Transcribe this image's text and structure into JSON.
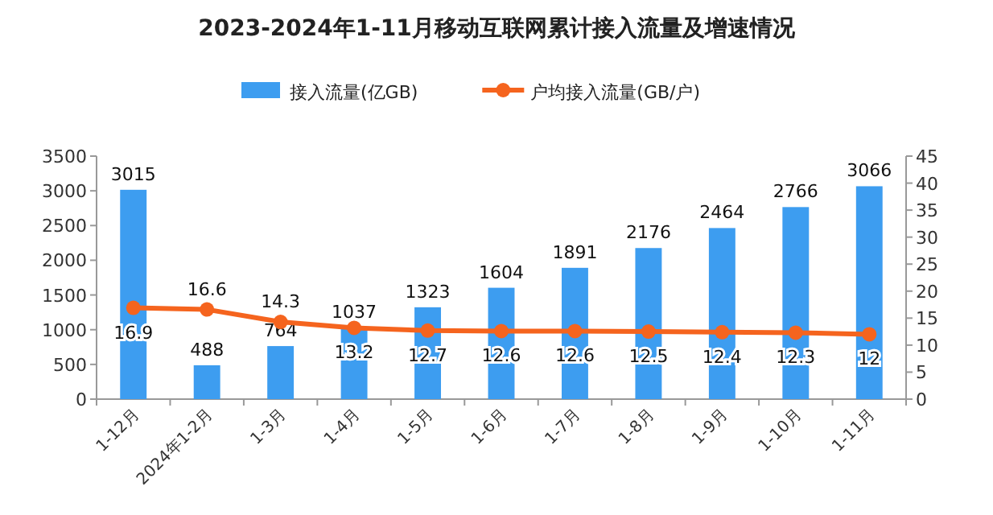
{
  "chart_data": {
    "type": "bar",
    "title": "2023-2024年1-11月移动互联网累计接入流量及增速情况",
    "categories": [
      "1-12月",
      "2024年1-2月",
      "1-3月",
      "1-4月",
      "1-5月",
      "1-6月",
      "1-7月",
      "1-8月",
      "1-9月",
      "1-10月",
      "1-11月"
    ],
    "series": [
      {
        "name": "接入流量(亿GB)",
        "color": "#3d9df0",
        "values": [
          3015,
          488,
          764,
          1037,
          1323,
          1604,
          1891,
          2176,
          2464,
          2766,
          3066
        ]
      },
      {
        "name": "户均接入流量(GB/户)",
        "type": "line",
        "axis": "y2",
        "color": "#f5641e",
        "marker": "circle",
        "values": [
          16.9,
          16.6,
          14.3,
          13.2,
          12.7,
          12.6,
          12.6,
          12.5,
          12.4,
          12.3,
          12
        ]
      }
    ],
    "ylim": [
      0,
      3500
    ],
    "yticks": [
      0,
      500,
      1000,
      1500,
      2000,
      2500,
      3000,
      3500
    ],
    "y2lim": [
      0,
      45
    ],
    "y2ticks": [
      0,
      5,
      10,
      15,
      20,
      25,
      30,
      35,
      40,
      45
    ],
    "data_labels": true,
    "legend": "top",
    "grid": false
  }
}
